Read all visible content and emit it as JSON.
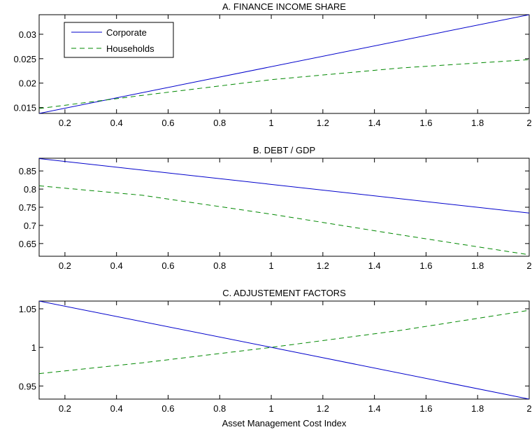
{
  "chart_data": [
    {
      "type": "line",
      "title": "A. FINANCE INCOME SHARE",
      "xlabel": "",
      "ylabel": "",
      "xlim": [
        0.1,
        2
      ],
      "ylim": [
        0.0138,
        0.034
      ],
      "xticks": [
        0.2,
        0.4,
        0.6,
        0.8,
        1,
        1.2,
        1.4,
        1.6,
        1.8,
        2
      ],
      "xticklabels": [
        "0.2",
        "0.4",
        "0.6",
        "0.8",
        "1",
        "1.2",
        "1.4",
        "1.6",
        "1.8",
        "2"
      ],
      "yticks": [
        0.015,
        0.02,
        0.025,
        0.03
      ],
      "yticklabels": [
        "0.015",
        "0.02",
        "0.025",
        "0.03"
      ],
      "grid": false,
      "legend_position": "top-left",
      "series": [
        {
          "name": "Corporate",
          "color": "#0000cc",
          "style": "solid",
          "x": [
            0.1,
            2
          ],
          "y": [
            0.0138,
            0.034
          ]
        },
        {
          "name": "Households",
          "color": "#008800",
          "style": "dashed",
          "x": [
            0.1,
            0.5,
            1,
            1.5,
            2
          ],
          "y": [
            0.0148,
            0.0175,
            0.0207,
            0.0231,
            0.0248
          ]
        }
      ]
    },
    {
      "type": "line",
      "title": "B. DEBT / GDP",
      "xlabel": "",
      "ylabel": "",
      "xlim": [
        0.1,
        2
      ],
      "ylim": [
        0.615,
        0.885
      ],
      "xticks": [
        0.2,
        0.4,
        0.6,
        0.8,
        1,
        1.2,
        1.4,
        1.6,
        1.8,
        2
      ],
      "xticklabels": [
        "0.2",
        "0.4",
        "0.6",
        "0.8",
        "1",
        "1.2",
        "1.4",
        "1.6",
        "1.8",
        "2"
      ],
      "yticks": [
        0.65,
        0.7,
        0.75,
        0.8,
        0.85
      ],
      "yticklabels": [
        "0.65",
        "0.7",
        "0.75",
        "0.8",
        "0.85"
      ],
      "grid": false,
      "series": [
        {
          "name": "Corporate",
          "color": "#0000cc",
          "style": "solid",
          "x": [
            0.1,
            2
          ],
          "y": [
            0.884,
            0.734
          ]
        },
        {
          "name": "Households",
          "color": "#008800",
          "style": "dashed",
          "x": [
            0.1,
            0.5,
            1,
            1.5,
            2
          ],
          "y": [
            0.809,
            0.783,
            0.731,
            0.674,
            0.619
          ]
        }
      ]
    },
    {
      "type": "line",
      "title": "C. ADJUSTEMENT FACTORS",
      "xlabel": "Asset Management Cost Index",
      "ylabel": "",
      "xlim": [
        0.1,
        2
      ],
      "ylim": [
        0.933,
        1.06
      ],
      "xticks": [
        0.2,
        0.4,
        0.6,
        0.8,
        1,
        1.2,
        1.4,
        1.6,
        1.8,
        2
      ],
      "xticklabels": [
        "0.2",
        "0.4",
        "0.6",
        "0.8",
        "1",
        "1.2",
        "1.4",
        "1.6",
        "1.8",
        "2"
      ],
      "yticks": [
        0.95,
        1,
        1.05
      ],
      "yticklabels": [
        "0.95",
        "1",
        "1.05"
      ],
      "grid": false,
      "series": [
        {
          "name": "Corporate",
          "color": "#0000cc",
          "style": "solid",
          "x": [
            0.1,
            1,
            2
          ],
          "y": [
            1.06,
            1.0,
            0.933
          ]
        },
        {
          "name": "Households",
          "color": "#008800",
          "style": "dashed",
          "x": [
            0.1,
            0.5,
            1,
            1.5,
            2
          ],
          "y": [
            0.966,
            0.98,
            1.0,
            1.022,
            1.048
          ]
        }
      ]
    }
  ]
}
